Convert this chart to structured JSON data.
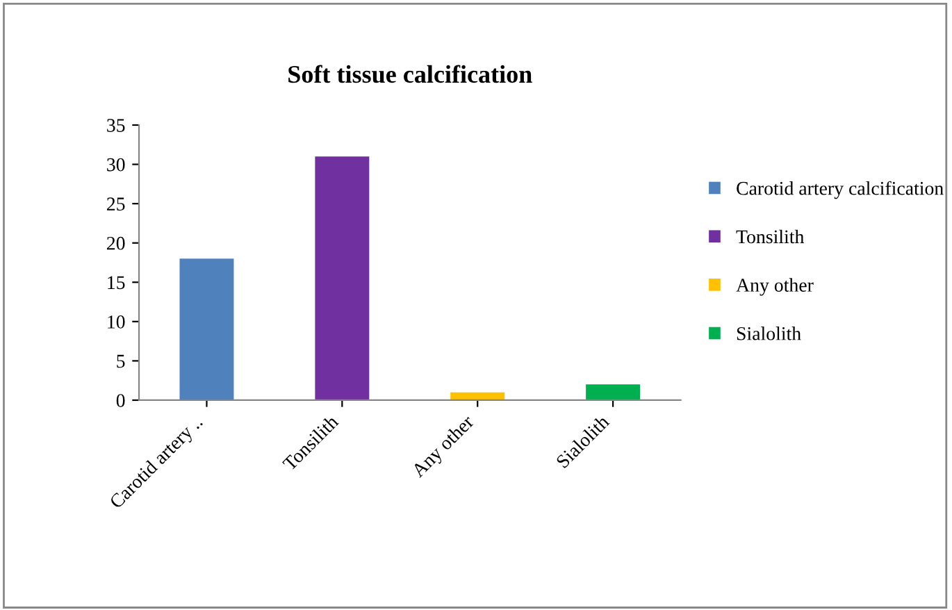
{
  "chart_data": {
    "type": "bar",
    "title": "Soft tissue calcification",
    "categories": [
      "Carotid artery ..",
      "Tonsilith",
      "Any other",
      "Sialolith"
    ],
    "series": [
      {
        "name": "Carotid artery calcification",
        "color": "#4f81bd",
        "values": [
          18,
          null,
          null,
          null
        ]
      },
      {
        "name": "Tonsilith",
        "color": "#7030a0",
        "values": [
          null,
          31,
          null,
          null
        ]
      },
      {
        "name": "Any other",
        "color": "#ffc000",
        "values": [
          null,
          null,
          1,
          null
        ]
      },
      {
        "name": "Sialolith",
        "color": "#00b050",
        "values": [
          null,
          null,
          null,
          2
        ]
      }
    ],
    "ylim": [
      0,
      35
    ],
    "yticks": [
      0,
      5,
      10,
      15,
      20,
      25,
      30,
      35
    ],
    "grid": false,
    "legend": "right"
  }
}
